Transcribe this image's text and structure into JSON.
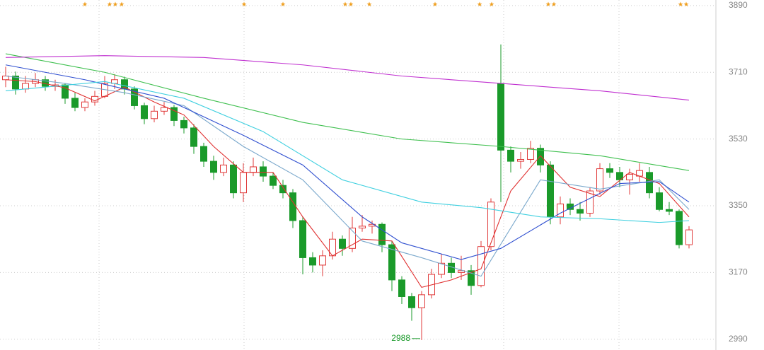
{
  "chart_data": {
    "type": "candlestick",
    "ylim": [
      2961,
      3905
    ],
    "yticks": [
      2990,
      3170,
      3350,
      3530,
      3710,
      3890
    ],
    "grid": true,
    "up_color": "#e03a3a",
    "down_color": "#1a9a2a",
    "candles": [
      [
        3690,
        3725,
        3670,
        3700
      ],
      [
        3700,
        3712,
        3650,
        3665
      ],
      [
        3665,
        3700,
        3655,
        3680
      ],
      [
        3680,
        3708,
        3670,
        3690
      ],
      [
        3690,
        3700,
        3660,
        3672
      ],
      [
        3672,
        3690,
        3660,
        3676
      ],
      [
        3676,
        3680,
        3625,
        3640
      ],
      [
        3640,
        3655,
        3605,
        3615
      ],
      [
        3615,
        3640,
        3605,
        3630
      ],
      [
        3630,
        3660,
        3620,
        3645
      ],
      [
        3645,
        3700,
        3640,
        3680
      ],
      [
        3680,
        3705,
        3665,
        3690
      ],
      [
        3690,
        3698,
        3650,
        3665
      ],
      [
        3665,
        3672,
        3610,
        3620
      ],
      [
        3620,
        3628,
        3570,
        3585
      ],
      [
        3585,
        3620,
        3575,
        3605
      ],
      [
        3605,
        3630,
        3595,
        3615
      ],
      [
        3615,
        3622,
        3565,
        3580
      ],
      [
        3580,
        3590,
        3545,
        3560
      ],
      [
        3560,
        3570,
        3490,
        3510
      ],
      [
        3510,
        3520,
        3455,
        3470
      ],
      [
        3470,
        3485,
        3420,
        3440
      ],
      [
        3440,
        3480,
        3430,
        3460
      ],
      [
        3460,
        3470,
        3370,
        3385
      ],
      [
        3385,
        3465,
        3360,
        3440
      ],
      [
        3440,
        3480,
        3430,
        3455
      ],
      [
        3455,
        3470,
        3415,
        3430
      ],
      [
        3430,
        3440,
        3395,
        3405
      ],
      [
        3405,
        3420,
        3370,
        3385
      ],
      [
        3385,
        3395,
        3290,
        3310
      ],
      [
        3310,
        3320,
        3165,
        3210
      ],
      [
        3210,
        3225,
        3170,
        3190
      ],
      [
        3190,
        3230,
        3160,
        3215
      ],
      [
        3215,
        3280,
        3205,
        3260
      ],
      [
        3260,
        3270,
        3215,
        3235
      ],
      [
        3235,
        3320,
        3225,
        3290
      ],
      [
        3290,
        3325,
        3280,
        3295
      ],
      [
        3295,
        3310,
        3275,
        3300
      ],
      [
        3300,
        3305,
        3225,
        3245
      ],
      [
        3245,
        3255,
        3120,
        3150
      ],
      [
        3150,
        3160,
        3085,
        3105
      ],
      [
        3105,
        3115,
        3040,
        3075
      ],
      [
        3075,
        3120,
        2988,
        3110
      ],
      [
        3110,
        3180,
        3100,
        3165
      ],
      [
        3165,
        3220,
        3155,
        3195
      ],
      [
        3195,
        3210,
        3155,
        3170
      ],
      [
        3170,
        3215,
        3150,
        3175
      ],
      [
        3175,
        3190,
        3110,
        3135
      ],
      [
        3135,
        3255,
        3130,
        3240
      ],
      [
        3240,
        3370,
        3230,
        3360
      ],
      [
        3680,
        3785,
        3360,
        3500
      ],
      [
        3500,
        3510,
        3440,
        3470
      ],
      [
        3470,
        3495,
        3450,
        3475
      ],
      [
        3475,
        3525,
        3465,
        3505
      ],
      [
        3505,
        3515,
        3440,
        3460
      ],
      [
        3460,
        3470,
        3300,
        3320
      ],
      [
        3320,
        3375,
        3300,
        3355
      ],
      [
        3355,
        3370,
        3325,
        3340
      ],
      [
        3340,
        3360,
        3310,
        3330
      ],
      [
        3330,
        3400,
        3320,
        3390
      ],
      [
        3390,
        3465,
        3380,
        3450
      ],
      [
        3450,
        3465,
        3425,
        3440
      ],
      [
        3440,
        3455,
        3400,
        3420
      ],
      [
        3420,
        3450,
        3380,
        3435
      ],
      [
        3430,
        3465,
        3415,
        3445
      ],
      [
        3440,
        3455,
        3370,
        3385
      ],
      [
        3385,
        3400,
        3335,
        3340
      ],
      [
        3340,
        3360,
        3325,
        3335
      ],
      [
        3335,
        3340,
        3235,
        3245
      ],
      [
        3245,
        3295,
        3235,
        3285
      ]
    ],
    "series": [
      {
        "color": "#e03030",
        "x": [
          0,
          3,
          6,
          9,
          12,
          15,
          18,
          21,
          24,
          27,
          30,
          33,
          36,
          39,
          42,
          45,
          48,
          51,
          54,
          57,
          60,
          63,
          66,
          69
        ],
        "values": [
          3690,
          3685,
          3668,
          3633,
          3670,
          3630,
          3595,
          3510,
          3440,
          3440,
          3320,
          3215,
          3260,
          3255,
          3130,
          3150,
          3180,
          3390,
          3485,
          3400,
          3375,
          3440,
          3410,
          3320
        ]
      },
      {
        "color": "#7aa8cc",
        "x": [
          0,
          6,
          12,
          18,
          24,
          30,
          36,
          42,
          48,
          54,
          60,
          66,
          69
        ],
        "values": [
          3700,
          3680,
          3655,
          3620,
          3510,
          3420,
          3255,
          3210,
          3160,
          3420,
          3395,
          3420,
          3340
        ]
      },
      {
        "color": "#3050d0",
        "x": [
          0,
          8,
          16,
          24,
          30,
          36,
          40,
          46,
          50,
          56,
          62,
          66,
          69
        ],
        "values": [
          3730,
          3690,
          3640,
          3540,
          3460,
          3320,
          3250,
          3205,
          3235,
          3330,
          3410,
          3415,
          3360
        ]
      },
      {
        "color": "#40d0e0",
        "x": [
          0,
          10,
          18,
          26,
          34,
          42,
          48,
          54,
          60,
          66,
          69
        ],
        "values": [
          3660,
          3685,
          3640,
          3550,
          3420,
          3360,
          3345,
          3320,
          3315,
          3305,
          3310
        ]
      },
      {
        "color": "#40c050",
        "x": [
          0,
          10,
          20,
          30,
          40,
          50,
          60,
          69
        ],
        "values": [
          3760,
          3710,
          3640,
          3575,
          3530,
          3510,
          3485,
          3445
        ]
      },
      {
        "color": "#c030d0",
        "x": [
          0,
          10,
          20,
          30,
          40,
          50,
          60,
          69
        ],
        "values": [
          3750,
          3755,
          3750,
          3730,
          3700,
          3680,
          3660,
          3635
        ]
      }
    ],
    "annotation": {
      "label": "2988",
      "value": 2988
    }
  }
}
